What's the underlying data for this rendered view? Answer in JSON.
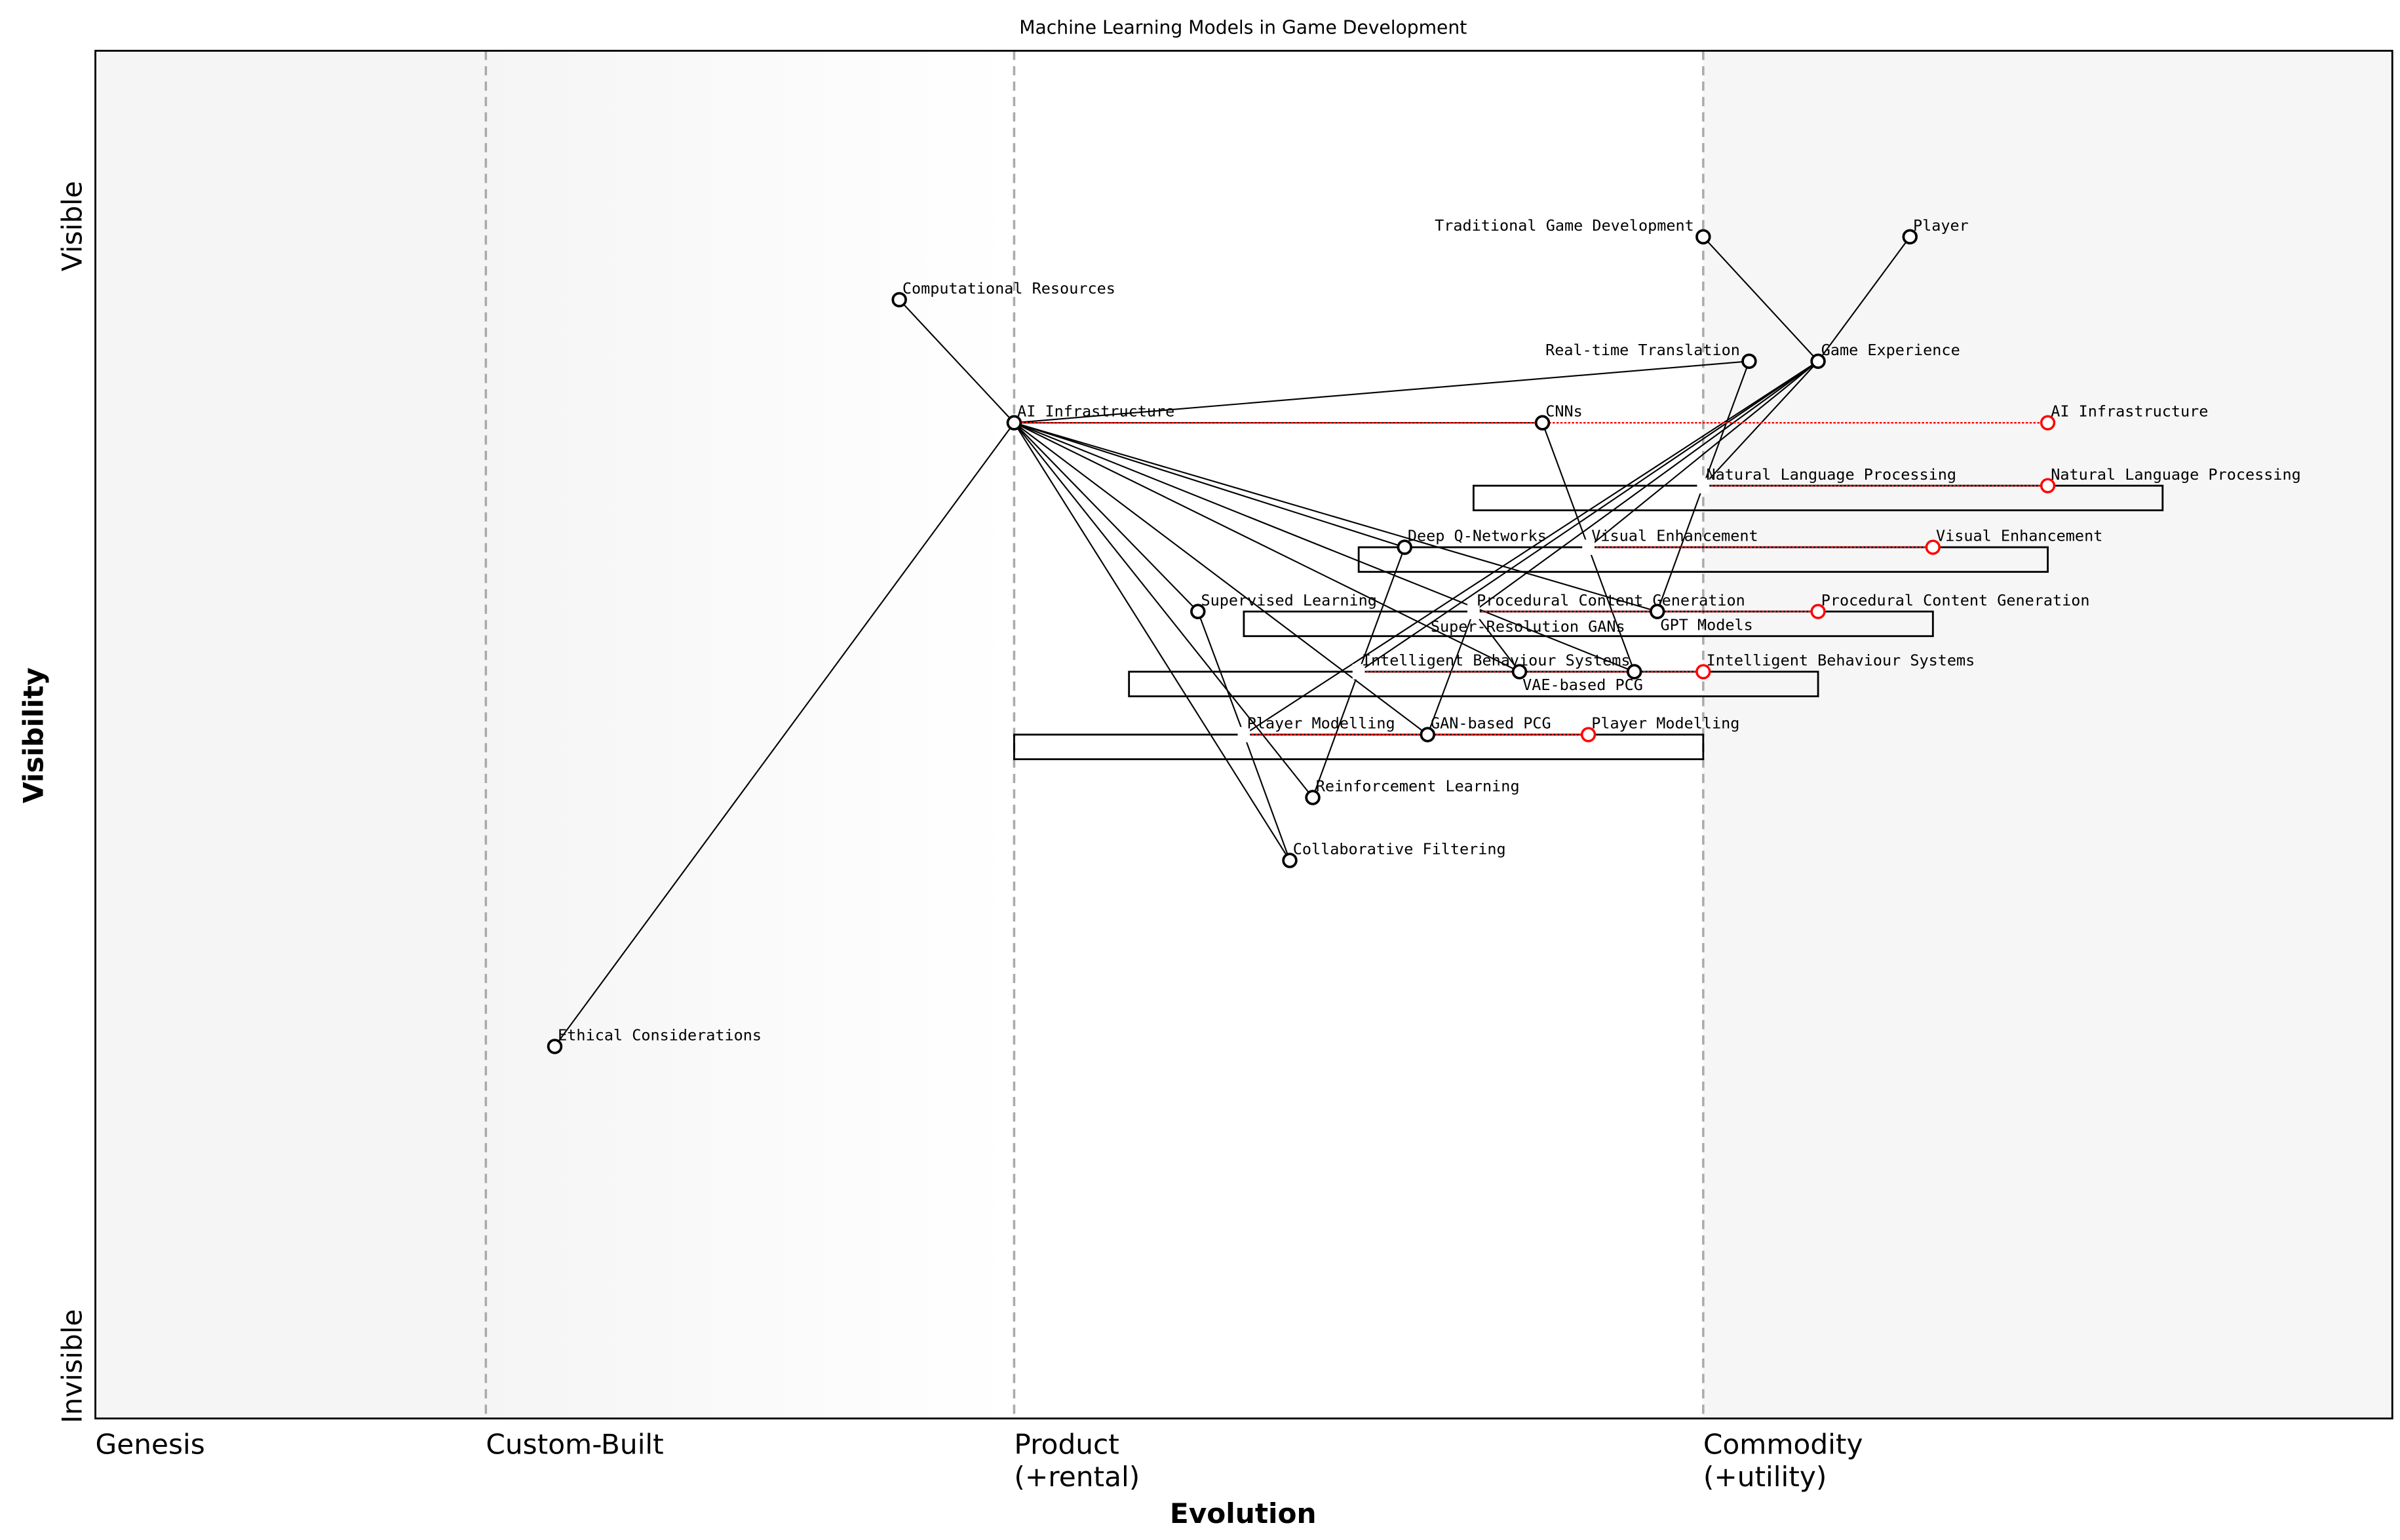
{
  "title": "Machine Learning Models in Game Development",
  "x_axis": {
    "label": "Evolution",
    "stages": [
      {
        "label": "Genesis",
        "at": 0
      },
      {
        "label": "Custom-Built",
        "at": 0.17
      },
      {
        "label": "Product\n(+rental)",
        "at": 0.4
      },
      {
        "label": "Commodity\n(+utility)",
        "at": 0.7
      }
    ]
  },
  "y_axis": {
    "label": "Visibility",
    "top": "Visible",
    "bottom": "Invisible"
  },
  "components": [
    {
      "name": "Player",
      "evo": 0.79,
      "vis": 0.864
    },
    {
      "name": "Traditional Game Development",
      "evo": 0.7,
      "vis": 0.864
    },
    {
      "name": "Game Experience",
      "evo": 0.75,
      "vis": 0.773
    },
    {
      "name": "Real-time Translation",
      "evo": 0.72,
      "vis": 0.773
    },
    {
      "name": "Computational Resources",
      "evo": 0.35,
      "vis": 0.818
    },
    {
      "name": "AI Infrastructure",
      "evo": 0.4,
      "vis": 0.728
    },
    {
      "name": "CNNs",
      "evo": 0.63,
      "vis": 0.728
    },
    {
      "name": "Deep Q-Networks",
      "evo": 0.57,
      "vis": 0.637
    },
    {
      "name": "GPT Models",
      "evo": 0.68,
      "vis": 0.59
    },
    {
      "name": "Supervised Learning",
      "evo": 0.48,
      "vis": 0.59
    },
    {
      "name": "VAE-based PCG",
      "evo": 0.62,
      "vis": 0.546
    },
    {
      "name": "Super-Resolution GANs",
      "evo": 0.67,
      "vis": 0.546
    },
    {
      "name": "GAN-based PCG",
      "evo": 0.58,
      "vis": 0.5
    },
    {
      "name": "Reinforcement Learning",
      "evo": 0.53,
      "vis": 0.454
    },
    {
      "name": "Collaborative Filtering",
      "evo": 0.52,
      "vis": 0.408
    },
    {
      "name": "Ethical Considerations",
      "evo": 0.2,
      "vis": 0.272
    }
  ],
  "pipelines": [
    {
      "name": "Natural Language Processing",
      "evo": 0.7,
      "vis": 0.682,
      "start": 0.6,
      "end": 0.9
    },
    {
      "name": "Visual Enhancement",
      "evo": 0.65,
      "vis": 0.637,
      "start": 0.55,
      "end": 0.85
    },
    {
      "name": "Procedural Content Generation",
      "evo": 0.6,
      "vis": 0.59,
      "start": 0.5,
      "end": 0.8
    },
    {
      "name": "Intelligent Behaviour Systems",
      "evo": 0.55,
      "vis": 0.546,
      "start": 0.45,
      "end": 0.75
    },
    {
      "name": "Player Modelling",
      "evo": 0.5,
      "vis": 0.5,
      "start": 0.4,
      "end": 0.7
    }
  ],
  "evolutions": [
    {
      "name": "AI Infrastructure",
      "from": 0.4,
      "to": 0.85,
      "vis": 0.728
    },
    {
      "name": "Natural Language Processing",
      "from": 0.7,
      "to": 0.85,
      "vis": 0.682
    },
    {
      "name": "Visual Enhancement",
      "from": 0.65,
      "to": 0.8,
      "vis": 0.637
    },
    {
      "name": "Procedural Content Generation",
      "from": 0.6,
      "to": 0.75,
      "vis": 0.59
    },
    {
      "name": "Intelligent Behaviour Systems",
      "from": 0.55,
      "to": 0.7,
      "vis": 0.546
    },
    {
      "name": "Player Modelling",
      "from": 0.5,
      "to": 0.65,
      "vis": 0.5
    }
  ],
  "links": [
    [
      "Traditional Game Development",
      "Game Experience"
    ],
    [
      "Player",
      "Game Experience"
    ],
    [
      "Computational Resources",
      "AI Infrastructure"
    ],
    [
      "Ethical Considerations",
      "AI Infrastructure"
    ],
    [
      "AI Infrastructure",
      "Real-time Translation"
    ],
    [
      "AI Infrastructure",
      "CNNs"
    ],
    [
      "AI Infrastructure",
      "Deep Q-Networks"
    ],
    [
      "AI Infrastructure",
      "GPT Models"
    ],
    [
      "AI Infrastructure",
      "Super-Resolution GANs"
    ],
    [
      "AI Infrastructure",
      "VAE-based PCG"
    ],
    [
      "AI Infrastructure",
      "GAN-based PCG"
    ],
    [
      "AI Infrastructure",
      "Reinforcement Learning"
    ],
    [
      "AI Infrastructure",
      "Collaborative Filtering"
    ],
    [
      "AI Infrastructure",
      "Supervised Learning"
    ],
    [
      "Game Experience",
      "Natural Language Processing"
    ],
    [
      "Game Experience",
      "Visual Enhancement"
    ],
    [
      "Game Experience",
      "Procedural Content Generation"
    ],
    [
      "Game Experience",
      "Intelligent Behaviour Systems"
    ],
    [
      "Game Experience",
      "Player Modelling"
    ],
    [
      "Natural Language Processing",
      "Real-time Translation"
    ],
    [
      "Natural Language Processing",
      "GPT Models"
    ],
    [
      "Visual Enhancement",
      "CNNs"
    ],
    [
      "Visual Enhancement",
      "Super-Resolution GANs"
    ],
    [
      "Procedural Content Generation",
      "GAN-based PCG"
    ],
    [
      "Procedural Content Generation",
      "VAE-based PCG"
    ],
    [
      "Intelligent Behaviour Systems",
      "Deep Q-Networks"
    ],
    [
      "Intelligent Behaviour Systems",
      "Reinforcement Learning"
    ],
    [
      "Player Modelling",
      "Supervised Learning"
    ],
    [
      "Player Modelling",
      "Collaborative Filtering"
    ]
  ],
  "colors": {
    "evolve": "#ff0000",
    "node": "#000000",
    "stage_line": "#aaaaaa"
  }
}
